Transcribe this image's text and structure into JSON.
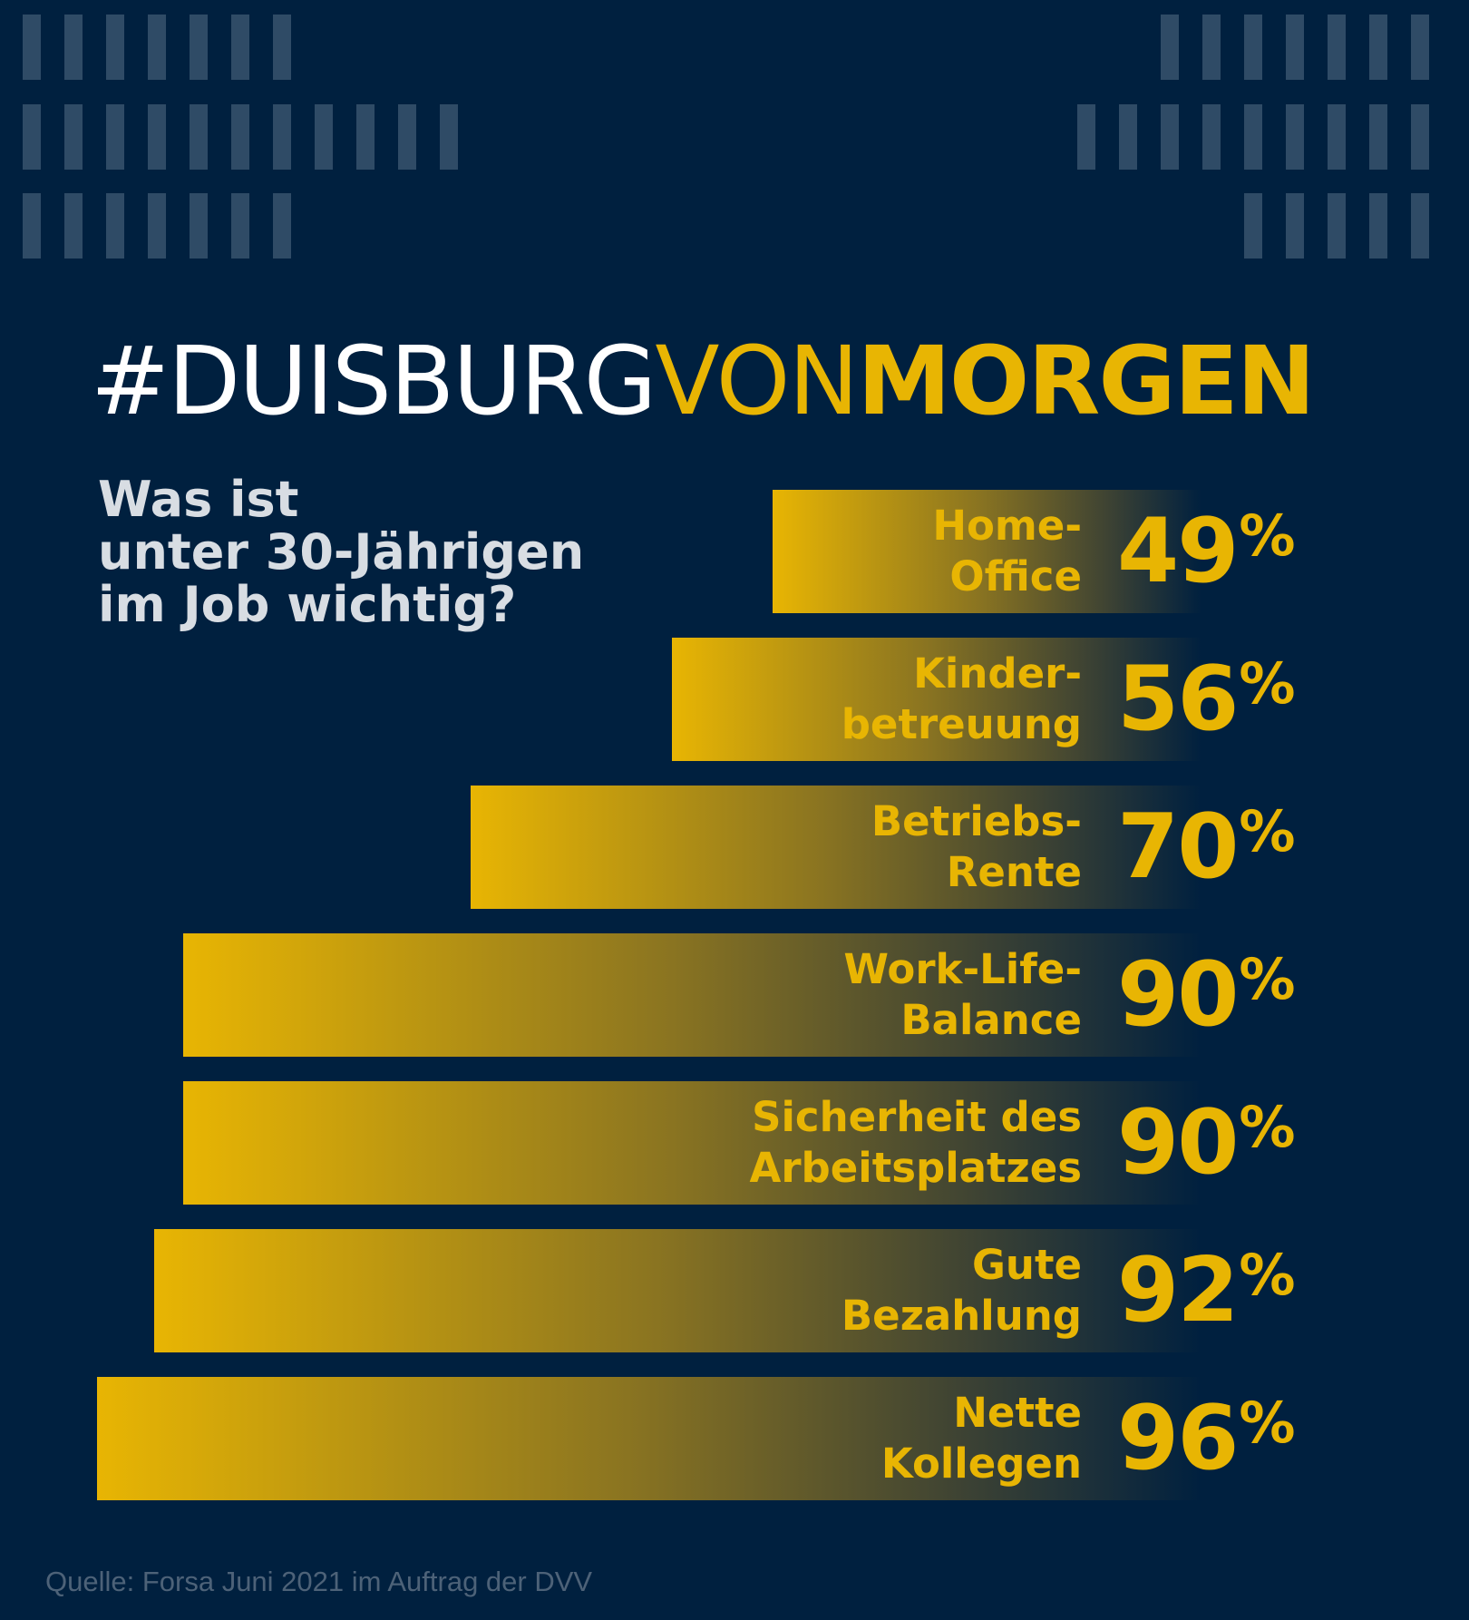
{
  "title": {
    "part1": "#DUISBURG",
    "part2": "VON",
    "part3": "MORGEN"
  },
  "question": {
    "line1": "Was ist",
    "line2": "unter 30-Jährigen",
    "line3": "im Job wichtig?"
  },
  "colors": {
    "background": "#00203f",
    "accent": "#e8b503",
    "stripes": "#2f4b66"
  },
  "chart_data": {
    "type": "bar",
    "orientation": "horizontal",
    "title": "Was ist unter 30-Jährigen im Job wichtig?",
    "unit": "%",
    "categories": [
      "Home-Office",
      "Kinderbetreuung",
      "Betriebs-Rente",
      "Work-Life-Balance",
      "Sicherheit des Arbeitsplatzes",
      "Gute Bezahlung",
      "Nette Kollegen"
    ],
    "items": [
      {
        "label_lines": [
          "Home-",
          "Office"
        ],
        "value": 49,
        "value_label": "49",
        "pct": "%"
      },
      {
        "label_lines": [
          "Kinder-",
          "betreuung"
        ],
        "value": 56,
        "value_label": "56",
        "pct": "%"
      },
      {
        "label_lines": [
          "Betriebs-",
          "Rente"
        ],
        "value": 70,
        "value_label": "70",
        "pct": "%"
      },
      {
        "label_lines": [
          "Work-Life-",
          "Balance"
        ],
        "value": 90,
        "value_label": "90",
        "pct": "%"
      },
      {
        "label_lines": [
          "Sicherheit des",
          "Arbeitsplatzes"
        ],
        "value": 90,
        "value_label": "90",
        "pct": "%"
      },
      {
        "label_lines": [
          "Gute",
          "Bezahlung"
        ],
        "value": 92,
        "value_label": "92",
        "pct": "%"
      },
      {
        "label_lines": [
          "Nette",
          "Kollegen"
        ],
        "value": 96,
        "value_label": "96",
        "pct": "%"
      }
    ],
    "xlim": [
      0,
      100
    ]
  },
  "source": "Quelle: Forsa Juni 2021 im Auftrag der DVV"
}
